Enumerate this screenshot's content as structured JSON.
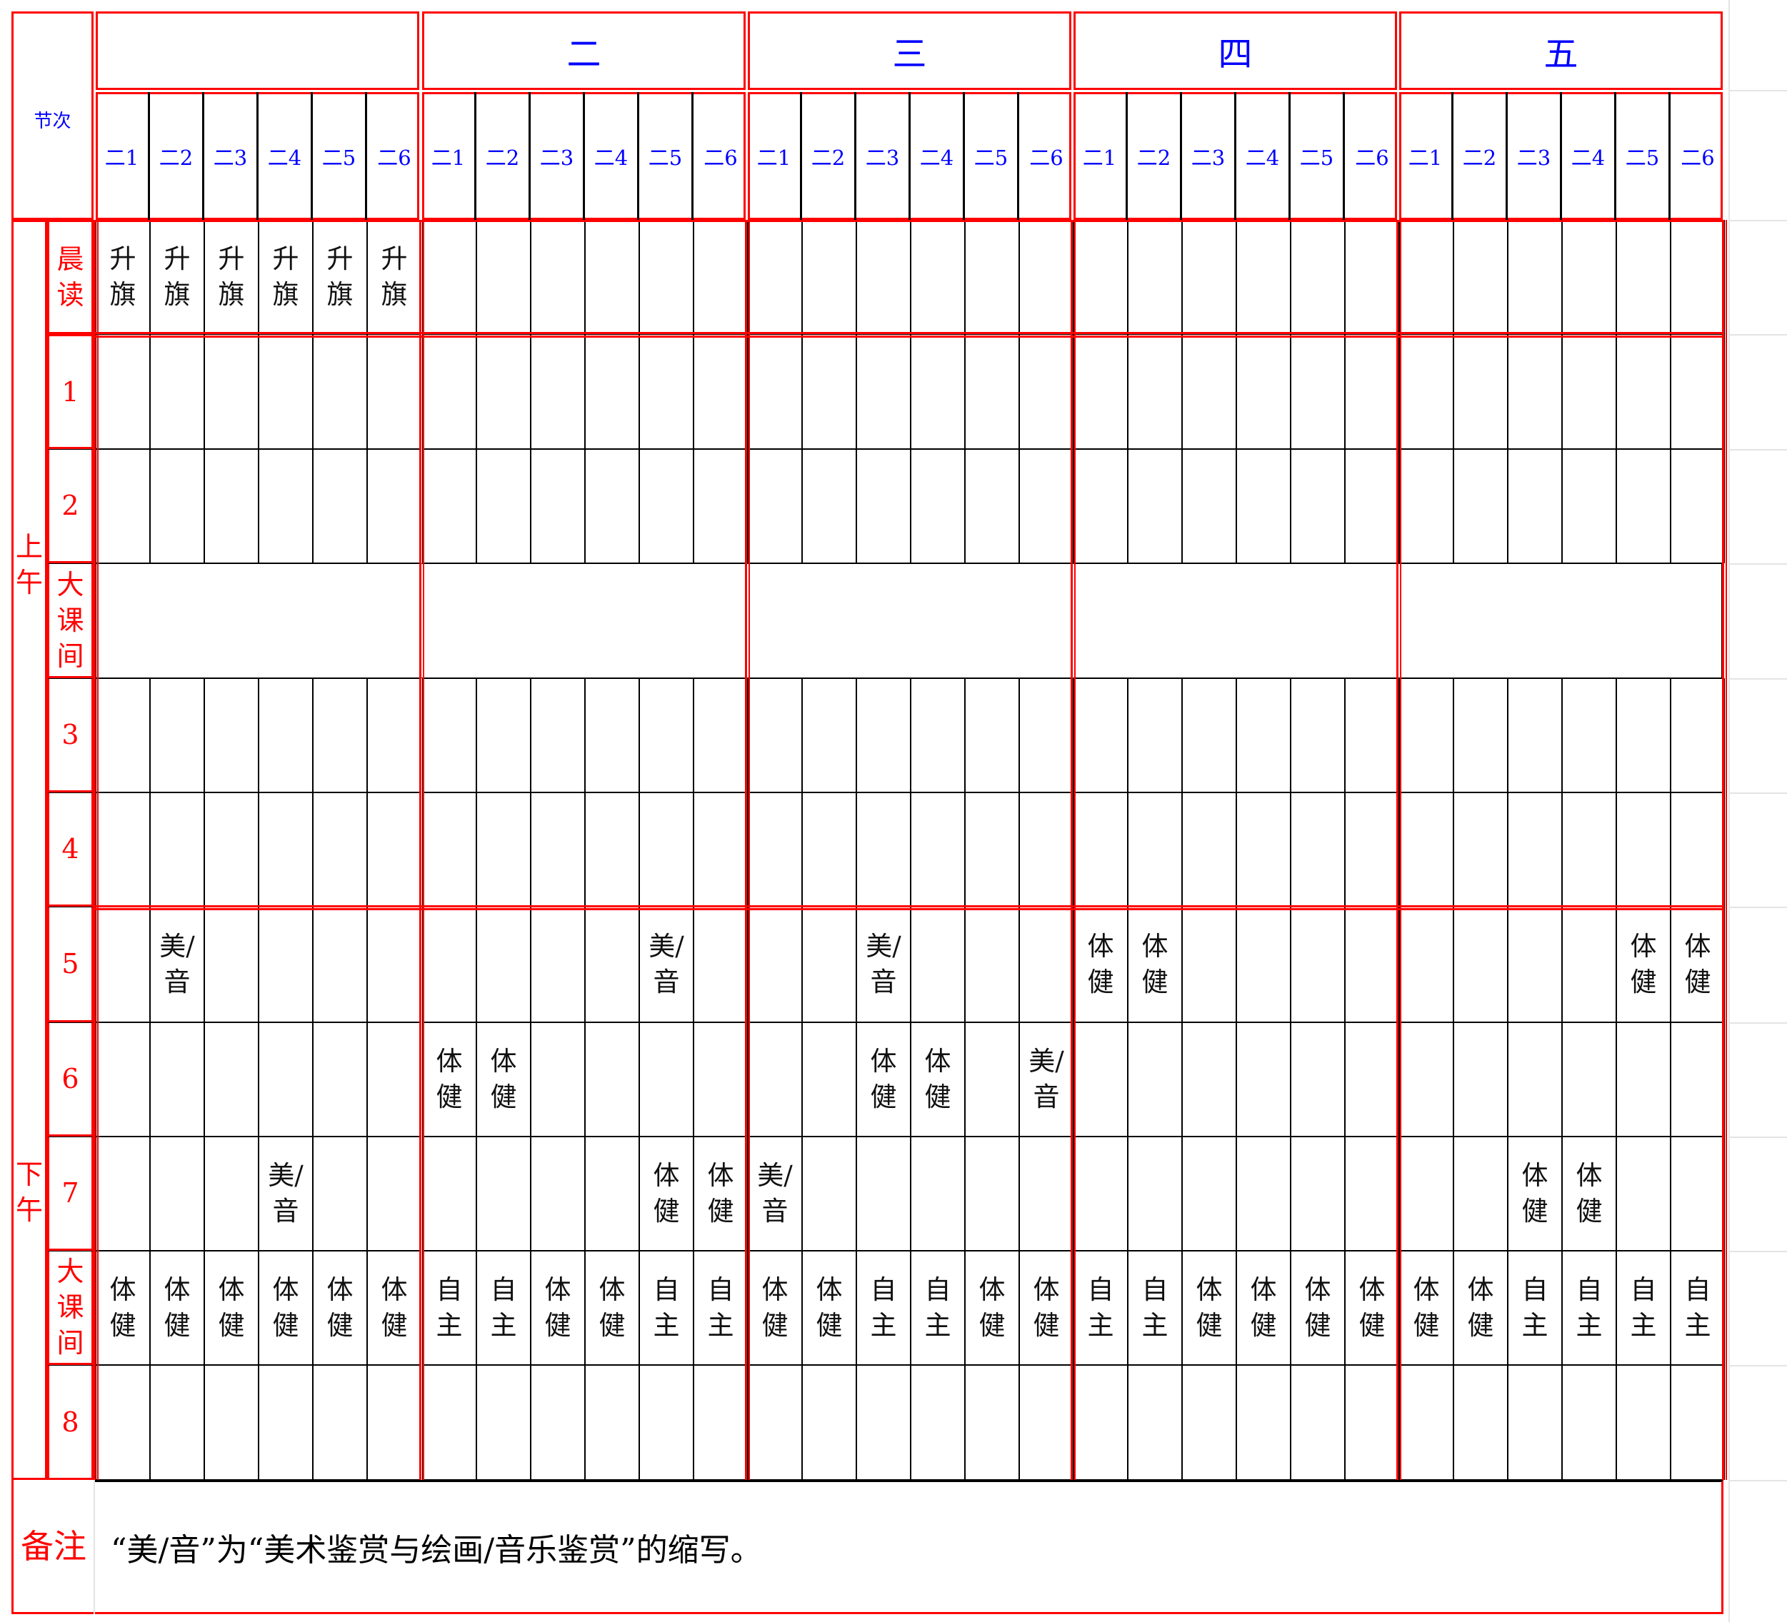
{
  "colors": {
    "accent": "#ff0000",
    "header": "#0000ff",
    "text": "#111111"
  },
  "corner_label": "节次",
  "days": [
    "",
    "二",
    "三",
    "四",
    "五"
  ],
  "classes": [
    "二1",
    "二2",
    "二3",
    "二4",
    "二5",
    "二6"
  ],
  "sections": {
    "morning": "上午",
    "afternoon": "下午"
  },
  "rows": [
    {
      "label": "晨读",
      "cells": [
        "升旗",
        "升旗",
        "升旗",
        "升旗",
        "升旗",
        "升旗",
        "",
        "",
        "",
        "",
        "",
        "",
        "",
        "",
        "",
        "",
        "",
        "",
        "",
        "",
        "",
        "",
        "",
        "",
        "",
        "",
        "",
        "",
        "",
        ""
      ]
    },
    {
      "label": "1",
      "cells": []
    },
    {
      "label": "2",
      "cells": []
    },
    {
      "label": "大课间",
      "merged": true,
      "cells": []
    },
    {
      "label": "3",
      "cells": []
    },
    {
      "label": "4",
      "cells": []
    },
    {
      "label": "5",
      "cells": [
        "",
        "美/音",
        "",
        "",
        "",
        "",
        "",
        "",
        "",
        "",
        "美/音",
        "",
        "",
        "",
        "美/音",
        "",
        "",
        "",
        "体健",
        "体健",
        "",
        "",
        "",
        "",
        "",
        "",
        "",
        "",
        "体健",
        "体健"
      ]
    },
    {
      "label": "6",
      "cells": [
        "",
        "",
        "",
        "",
        "",
        "",
        "体健",
        "体健",
        "",
        "",
        "",
        "",
        "",
        "",
        "体健",
        "体健",
        "",
        "美/音",
        "",
        "",
        "",
        "",
        "",
        "",
        "",
        "",
        "",
        "",
        "",
        ""
      ]
    },
    {
      "label": "7",
      "cells": [
        "",
        "",
        "",
        "美/音",
        "",
        "",
        "",
        "",
        "",
        "",
        "体健",
        "体健",
        "美/音",
        "",
        "",
        "",
        "",
        "",
        "",
        "",
        "",
        "",
        "",
        "",
        "",
        "",
        "体健",
        "体健",
        "",
        ""
      ]
    },
    {
      "label": "大课间",
      "cells": [
        "体健",
        "体健",
        "体健",
        "体健",
        "体健",
        "体健",
        "自主",
        "自主",
        "体健",
        "体健",
        "自主",
        "自主",
        "体健",
        "体健",
        "自主",
        "自主",
        "体健",
        "体健",
        "自主",
        "自主",
        "体健",
        "体健",
        "体健",
        "体健",
        "体健",
        "体健",
        "自主",
        "自主",
        "自主",
        "自主"
      ]
    },
    {
      "label": "8",
      "cells": []
    }
  ],
  "note": {
    "label": "备注",
    "text": "“美/音”为“美术鉴赏与绘画/音乐鉴赏”的缩写。"
  }
}
